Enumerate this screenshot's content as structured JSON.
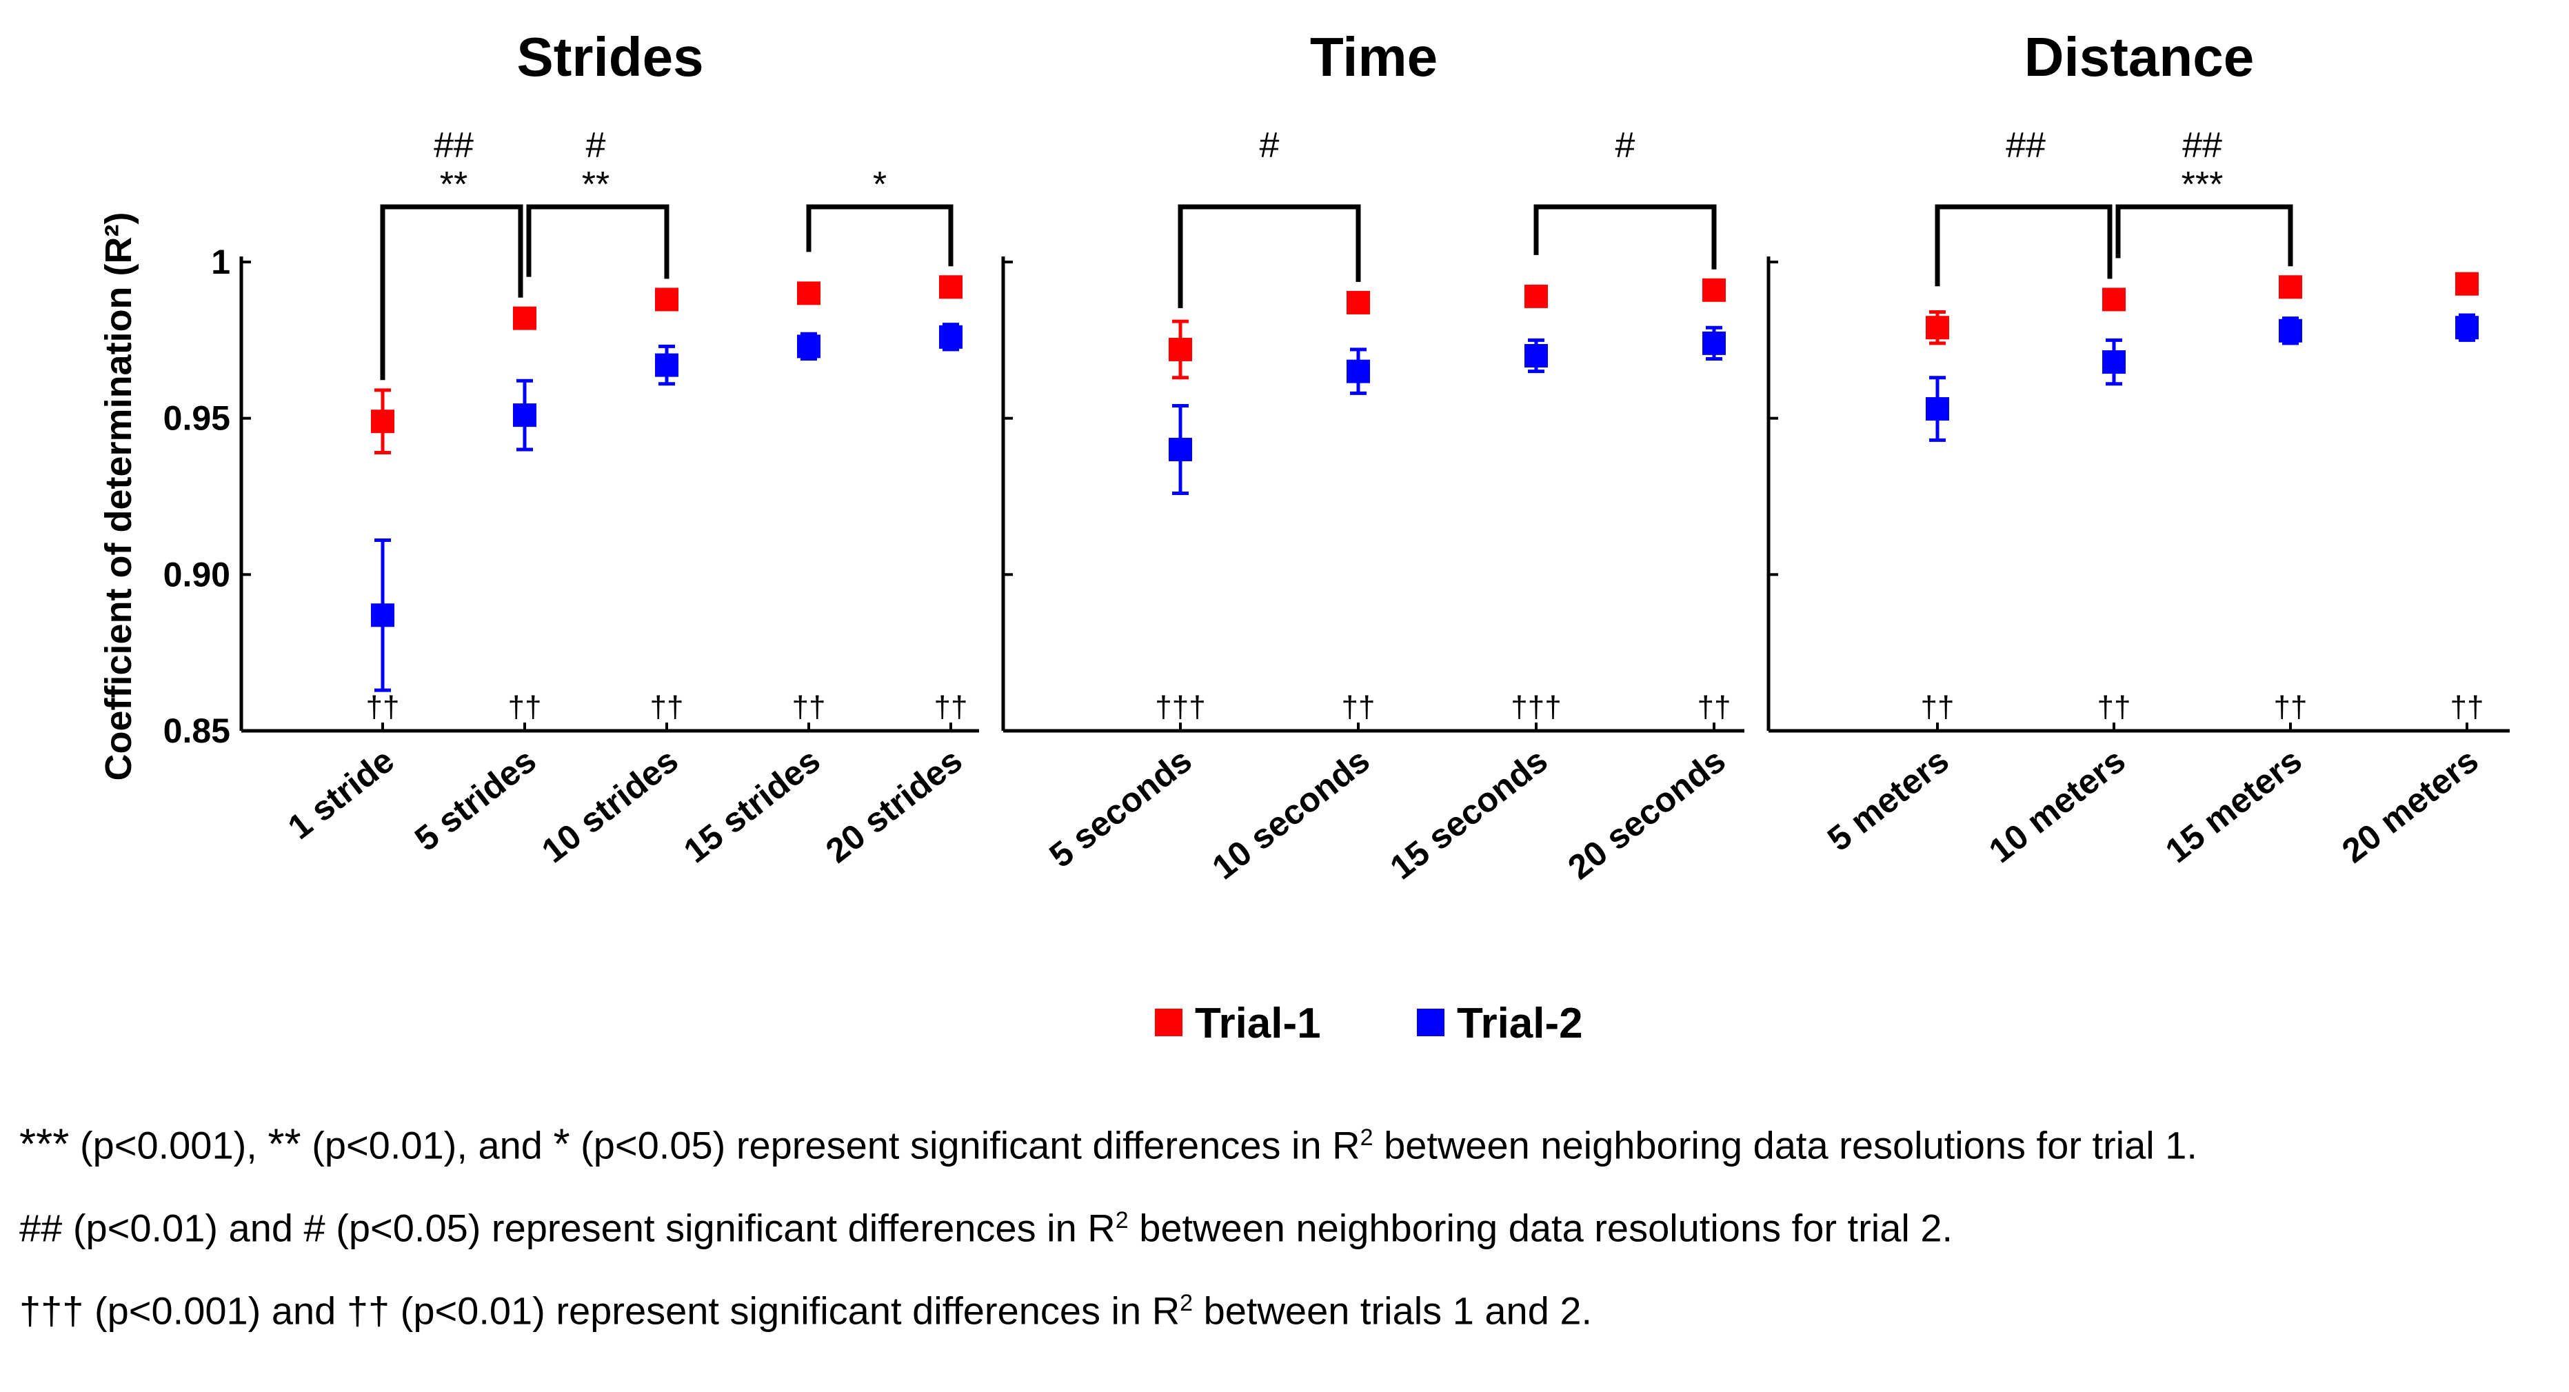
{
  "chart_data": [
    {
      "type": "scatter",
      "title": "Strides",
      "ylabel": "Coefficient of determination (R²)",
      "ylim": [
        0.85,
        1.0
      ],
      "yticks": [
        "0.85",
        "0.90",
        "0.95",
        "1"
      ],
      "categories": [
        "1 stride",
        "5 strides",
        "10 strides",
        "15 strides",
        "20 strides"
      ],
      "series": [
        {
          "name": "Trial-1",
          "values": [
            0.949,
            0.982,
            0.988,
            0.99,
            0.992
          ],
          "errors": [
            0.01,
            0.002,
            0.002,
            0.002,
            0.002
          ]
        },
        {
          "name": "Trial-2",
          "values": [
            0.887,
            0.951,
            0.967,
            0.973,
            0.976
          ],
          "errors": [
            0.024,
            0.011,
            0.006,
            0.004,
            0.004
          ]
        }
      ],
      "trial_diff_marks": [
        "††",
        "††",
        "††",
        "††",
        "††"
      ],
      "brackets": [
        {
          "from": 0,
          "to": 1,
          "top": "##",
          "bottom": "**"
        },
        {
          "from": 1,
          "to": 2,
          "top": "#",
          "bottom": "**"
        },
        {
          "from": 3,
          "to": 4,
          "top": "",
          "bottom": "*"
        }
      ]
    },
    {
      "type": "scatter",
      "title": "Time",
      "ylim": [
        0.85,
        1.0
      ],
      "categories": [
        "5 seconds",
        "10 seconds",
        "15 seconds",
        "20 seconds"
      ],
      "series": [
        {
          "name": "Trial-1",
          "values": [
            0.972,
            0.987,
            0.989,
            0.991
          ],
          "errors": [
            0.009,
            0.002,
            0.002,
            0.002
          ]
        },
        {
          "name": "Trial-2",
          "values": [
            0.94,
            0.965,
            0.97,
            0.974
          ],
          "errors": [
            0.014,
            0.007,
            0.005,
            0.005
          ]
        }
      ],
      "trial_diff_marks": [
        "†††",
        "††",
        "†††",
        "††"
      ],
      "brackets": [
        {
          "from": 0,
          "to": 1,
          "top": "#",
          "bottom": ""
        },
        {
          "from": 2,
          "to": 3,
          "top": "#",
          "bottom": ""
        }
      ]
    },
    {
      "type": "scatter",
      "title": "Distance",
      "ylim": [
        0.85,
        1.0
      ],
      "categories": [
        "5 meters",
        "10 meters",
        "15 meters",
        "20 meters"
      ],
      "series": [
        {
          "name": "Trial-1",
          "values": [
            0.979,
            0.988,
            0.992,
            0.993
          ],
          "errors": [
            0.005,
            0.002,
            0.002,
            0.002
          ]
        },
        {
          "name": "Trial-2",
          "values": [
            0.953,
            0.968,
            0.978,
            0.979
          ],
          "errors": [
            0.01,
            0.007,
            0.004,
            0.004
          ]
        }
      ],
      "trial_diff_marks": [
        "††",
        "††",
        "††",
        "††"
      ],
      "brackets": [
        {
          "from": 0,
          "to": 1,
          "top": "##",
          "bottom": ""
        },
        {
          "from": 1,
          "to": 2,
          "top": "##",
          "bottom": "***"
        }
      ]
    }
  ],
  "legend": [
    {
      "label": "Trial-1",
      "color": "#ff0000"
    },
    {
      "label": "Trial-2",
      "color": "#0000ff"
    }
  ],
  "notes": {
    "line1": {
      "sym1": "***",
      "p1": "(p<0.001), ",
      "sym2": "**",
      "p2": "(p<0.01), and ",
      "sym3": "*",
      "text": "(p<0.05) represent significant differences in R",
      "sup": "2",
      "tail": " between neighboring data resolutions for trial 1."
    },
    "line2": {
      "text": "## (p<0.01) and # (p<0.05) represent significant differences in R",
      "sup": "2",
      "tail": " between neighboring data resolutions for trial 2."
    },
    "line3": {
      "text": "††† (p<0.001) and †† (p<0.01) represent significant differences in R",
      "sup": "2",
      "tail": " between trials 1 and 2."
    }
  }
}
